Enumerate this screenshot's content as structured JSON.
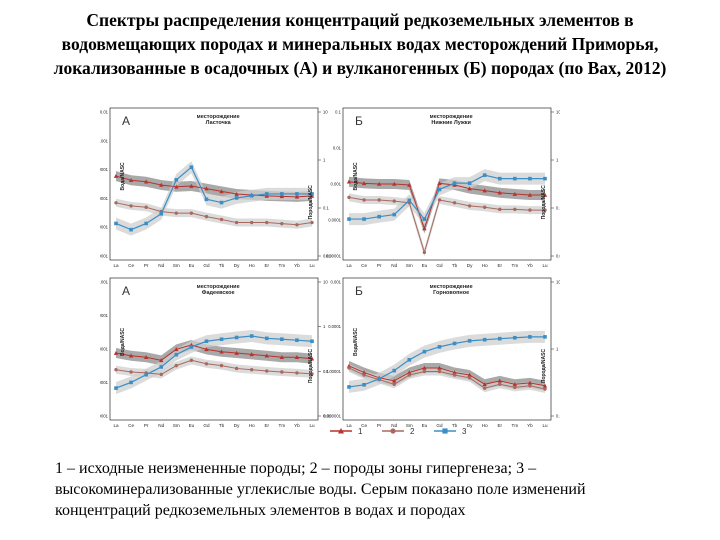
{
  "title_lines": [
    "Спектры распределения концентраций редкоземельных элементов в",
    "водовмещающих породах и минеральных водах месторождений Приморья,",
    "локализованные в осадочных (А) и вулканогенных (Б) породах (по Вах, 2012)"
  ],
  "caption": "1 – исходные неизмененные породы; 2 – породы зоны гипергенеза; 3 – высокоминерализованные углекислые воды. Серым показано поле изменений концентраций редкоземельных элементов в водах и породах",
  "legend": [
    "1",
    "2",
    "3"
  ],
  "colors": {
    "series1": "#b8332e",
    "series2": "#a86a5e",
    "series3": "#3b8fc6",
    "band": "#cfcfcf",
    "band_dark": "#8c8c8c"
  },
  "chart_data": [
    {
      "type": "line",
      "panel_letter": "А",
      "title": "месторождение Ласточка",
      "x": [
        "La",
        "Ce",
        "Pr",
        "Nd",
        "Sm",
        "Eu",
        "Gd",
        "Tb",
        "Dy",
        "Ho",
        "Er",
        "Tm",
        "Yb",
        "Lu"
      ],
      "left_label": "Вода/NASC",
      "right_label": "Порода/NASC",
      "left_ticks": [
        "0.01",
        "0.001",
        "0.0001",
        "0.00001",
        "0.000001",
        "0.0000001"
      ],
      "right_ticks": [
        "10",
        "1",
        "0.1",
        "0.01"
      ],
      "log_scale": true,
      "series": [
        {
          "values": [
            1.25,
            1.1,
            1.05,
            0.95,
            0.9,
            0.92,
            0.85,
            0.78,
            0.72,
            0.7,
            0.68,
            0.67,
            0.66,
            0.68
          ]
        },
        {
          "values": [
            0.55,
            0.5,
            0.48,
            0.42,
            0.4,
            0.4,
            0.36,
            0.33,
            0.3,
            0.3,
            0.3,
            0.29,
            0.28,
            0.3
          ]
        },
        {
          "values": [
            3e-06,
            1.6e-06,
            3e-06,
            8e-06,
            0.00025,
            0.0009,
            3.5e-05,
            2.5e-05,
            4e-05,
            5e-05,
            6e-05,
            6e-05,
            6e-05,
            6e-05
          ]
        }
      ]
    },
    {
      "type": "line",
      "panel_letter": "Б",
      "title": "месторождение Нижние Лужки",
      "x": [
        "La",
        "Ce",
        "Pr",
        "Nd",
        "Sm",
        "Eu",
        "Gd",
        "Tb",
        "Dy",
        "Ho",
        "Er",
        "Tm",
        "Yb",
        "Lu"
      ],
      "left_label": "Вода/NASC",
      "right_label": "Порода/NASC",
      "left_ticks": [
        "0.1",
        "0.01",
        "0.001",
        "0.0001",
        "0.00001"
      ],
      "right_ticks": [
        "10",
        "1",
        "0.1",
        "0.01"
      ],
      "log_scale": true,
      "series": [
        {
          "values": [
            1.05,
            1.0,
            0.98,
            0.98,
            0.95,
            0.25,
            1.0,
            0.95,
            0.85,
            0.8,
            0.75,
            0.72,
            0.7,
            0.7
          ]
        },
        {
          "values": [
            0.65,
            0.6,
            0.6,
            0.58,
            0.55,
            0.12,
            0.6,
            0.55,
            0.5,
            0.48,
            0.45,
            0.45,
            0.44,
            0.44
          ]
        },
        {
          "values": [
            0.0003,
            0.0003,
            0.00035,
            0.0004,
            0.001,
            0.0003,
            0.002,
            0.003,
            0.003,
            0.005,
            0.004,
            0.004,
            0.004,
            0.004
          ]
        }
      ]
    },
    {
      "type": "line",
      "panel_letter": "А",
      "title": "месторождение Фадеевское",
      "x": [
        "La",
        "Ce",
        "Pr",
        "Nd",
        "Sm",
        "Eu",
        "Gd",
        "Tb",
        "Dy",
        "Ho",
        "Er",
        "Tm",
        "Yb",
        "Lu"
      ],
      "left_label": "Вода/NASC",
      "right_label": "Порода/NASC",
      "left_ticks": [
        "0.001",
        "0.0001",
        "0.00001",
        "0.000001",
        "0.0000001"
      ],
      "right_ticks": [
        "10",
        "1",
        "0.1",
        "0.01"
      ],
      "log_scale": true,
      "series": [
        {
          "values": [
            1.25,
            1.15,
            1.1,
            1.0,
            1.4,
            1.6,
            1.4,
            1.3,
            1.25,
            1.2,
            1.15,
            1.1,
            1.1,
            1.05
          ]
        },
        {
          "values": [
            0.75,
            0.7,
            0.68,
            0.65,
            0.85,
            1.0,
            0.9,
            0.85,
            0.78,
            0.75,
            0.72,
            0.7,
            0.68,
            0.66
          ]
        },
        {
          "values": [
            1.5e-07,
            2.5e-07,
            5e-07,
            1e-06,
            3e-06,
            6e-06,
            1e-05,
            1.2e-05,
            1.4e-05,
            1.6e-05,
            1.3e-05,
            1.2e-05,
            1.1e-05,
            1e-05
          ]
        }
      ]
    },
    {
      "type": "line",
      "panel_letter": "Б",
      "title": "месторождение Горновопное",
      "x": [
        "La",
        "Ce",
        "Pr",
        "Nd",
        "Sm",
        "Eu",
        "Gd",
        "Tb",
        "Dy",
        "Ho",
        "Er",
        "Tm",
        "Yb",
        "Lu"
      ],
      "left_label": "Вода/NASC",
      "right_label": "Порода/NASC",
      "left_ticks": [
        "0.001",
        "0.0001",
        "0.00001",
        "0.000001"
      ],
      "right_ticks": [
        "10",
        "1",
        "0.1"
      ],
      "log_scale": true,
      "series": [
        {
          "values": [
            0.75,
            0.6,
            0.5,
            0.45,
            0.6,
            0.7,
            0.7,
            0.6,
            0.55,
            0.4,
            0.45,
            0.4,
            0.42,
            0.38
          ]
        },
        {
          "values": [
            0.7,
            0.55,
            0.47,
            0.4,
            0.55,
            0.62,
            0.62,
            0.55,
            0.5,
            0.35,
            0.4,
            0.36,
            0.38,
            0.34
          ]
        },
        {
          "values": [
            1e-05,
            1.2e-05,
            2e-05,
            4e-05,
            0.0001,
            0.0002,
            0.0003,
            0.0004,
            0.0005,
            0.00055,
            0.0006,
            0.00065,
            0.0007,
            0.0007
          ]
        }
      ]
    }
  ]
}
